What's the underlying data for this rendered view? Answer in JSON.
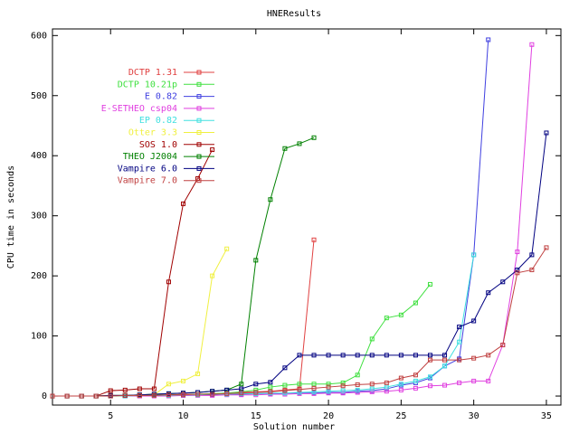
{
  "chart_data": {
    "type": "line",
    "title": "HNEResults",
    "x_label": "Solution number",
    "y_label": "CPU time in seconds",
    "x": [
      1,
      2,
      3,
      4,
      5,
      6,
      7,
      8,
      9,
      10,
      11,
      12,
      13,
      14,
      15,
      16,
      17,
      18,
      19,
      20,
      21,
      22,
      23,
      24,
      25,
      26,
      27,
      28,
      29,
      30,
      31,
      32,
      33,
      34,
      35
    ],
    "xlim": [
      1,
      36
    ],
    "ylim": [
      -15,
      611
    ],
    "xticks": [
      5,
      10,
      15,
      20,
      25,
      30,
      35
    ],
    "yticks": [
      0,
      100,
      200,
      300,
      400,
      500,
      600
    ],
    "grid": false,
    "series": [
      {
        "name": "DCTP 1.31",
        "color": "#e04040",
        "values": [
          0,
          0,
          0,
          0,
          1,
          1,
          1,
          2,
          2,
          3,
          3,
          4,
          5,
          6,
          7,
          8,
          10,
          12,
          260,
          null,
          null,
          null,
          null,
          null,
          null,
          null,
          null,
          null,
          null,
          null,
          null,
          null,
          null,
          null,
          null
        ]
      },
      {
        "name": "DCTP 10.21p",
        "color": "#40e040",
        "values": [
          0,
          0,
          0,
          0,
          0,
          1,
          1,
          1,
          2,
          2,
          3,
          4,
          5,
          7,
          10,
          15,
          18,
          20,
          20,
          20,
          22,
          35,
          95,
          130,
          135,
          155,
          186,
          null,
          null,
          null,
          null,
          null,
          null,
          null,
          null
        ]
      },
      {
        "name": "E 0.82",
        "color": "#4040e0",
        "values": [
          0,
          0,
          0,
          0,
          0,
          0,
          0,
          1,
          1,
          1,
          2,
          2,
          3,
          3,
          4,
          4,
          5,
          5,
          5,
          6,
          6,
          8,
          9,
          12,
          18,
          22,
          30,
          50,
          62,
          235,
          593,
          null,
          null,
          null,
          null
        ]
      },
      {
        "name": "E-SETHEO csp04",
        "color": "#e040e0",
        "values": [
          0,
          0,
          0,
          0,
          0,
          0,
          0,
          0,
          0,
          1,
          1,
          1,
          2,
          2,
          2,
          3,
          3,
          4,
          4,
          5,
          5,
          6,
          7,
          8,
          10,
          13,
          17,
          18,
          22,
          25,
          25,
          85,
          240,
          585,
          null
        ]
      },
      {
        "name": "EP 0.82",
        "color": "#40e0e0",
        "values": [
          0,
          0,
          0,
          0,
          0,
          0,
          1,
          1,
          1,
          2,
          2,
          3,
          3,
          4,
          4,
          5,
          5,
          6,
          7,
          8,
          9,
          10,
          12,
          15,
          20,
          25,
          32,
          50,
          90,
          235,
          null,
          null,
          null,
          null,
          null
        ]
      },
      {
        "name": "Otter 3.3",
        "color": "#f0f040",
        "values": [
          0,
          0,
          0,
          0,
          0,
          1,
          1,
          2,
          20,
          25,
          37,
          200,
          245,
          null,
          null,
          null,
          null,
          null,
          null,
          null,
          null,
          null,
          null,
          null,
          null,
          null,
          null,
          null,
          null,
          null,
          null,
          null,
          null,
          null,
          null
        ]
      },
      {
        "name": "SOS 1.0",
        "color": "#a00000",
        "values": [
          0,
          0,
          0,
          0,
          9,
          10,
          12,
          12,
          190,
          320,
          362,
          410,
          null,
          null,
          null,
          null,
          null,
          null,
          null,
          null,
          null,
          null,
          null,
          null,
          null,
          null,
          null,
          null,
          null,
          null,
          null,
          null,
          null,
          null,
          null
        ]
      },
      {
        "name": "THEO J2004",
        "color": "#008000",
        "values": [
          0,
          0,
          0,
          0,
          1,
          1,
          2,
          3,
          4,
          5,
          6,
          8,
          10,
          20,
          226,
          327,
          412,
          420,
          430,
          null,
          null,
          null,
          null,
          null,
          null,
          null,
          null,
          null,
          null,
          null,
          null,
          null,
          null,
          null,
          null
        ]
      },
      {
        "name": "Vampire 6.0",
        "color": "#000080",
        "values": [
          0,
          0,
          0,
          0,
          1,
          1,
          2,
          3,
          4,
          5,
          6,
          8,
          10,
          12,
          20,
          23,
          47,
          68,
          68,
          68,
          68,
          68,
          68,
          68,
          68,
          68,
          68,
          68,
          115,
          125,
          172,
          190,
          210,
          235,
          438
        ]
      },
      {
        "name": "Vampire 7.0",
        "color": "#c04040",
        "values": [
          0,
          0,
          0,
          0,
          0,
          1,
          1,
          1,
          2,
          2,
          3,
          3,
          4,
          5,
          6,
          7,
          9,
          11,
          13,
          15,
          17,
          19,
          20,
          22,
          30,
          35,
          60,
          60,
          60,
          63,
          68,
          85,
          205,
          210,
          247
        ]
      }
    ]
  }
}
